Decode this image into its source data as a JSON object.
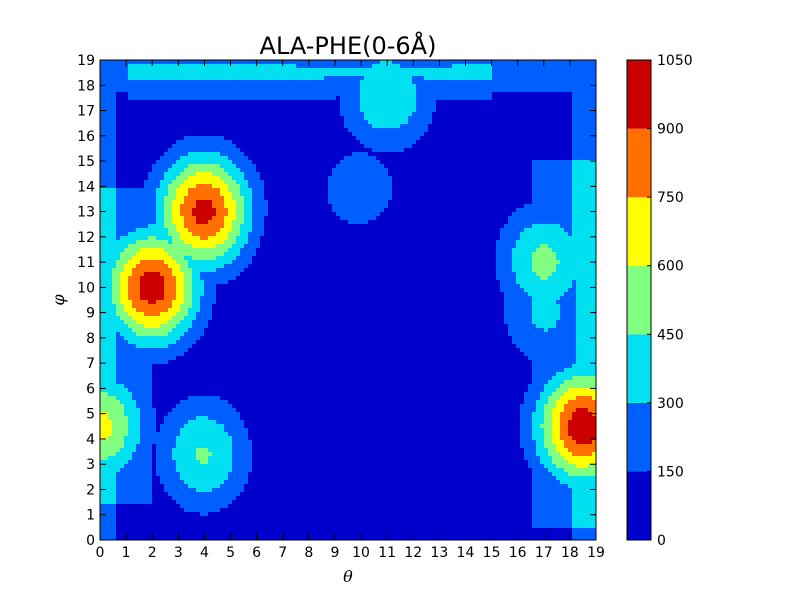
{
  "chart_data": {
    "type": "heatmap",
    "title": "ALA-PHE(0-6Å)",
    "xlabel": "θ",
    "ylabel": "φ",
    "xlim": [
      0,
      19
    ],
    "ylim": [
      0,
      19
    ],
    "x_ticks": [
      "0",
      "1",
      "2",
      "3",
      "4",
      "5",
      "6",
      "7",
      "8",
      "9",
      "10",
      "11",
      "12",
      "13",
      "14",
      "15",
      "16",
      "17",
      "18",
      "19"
    ],
    "y_ticks": [
      "0",
      "1",
      "2",
      "3",
      "4",
      "5",
      "6",
      "7",
      "8",
      "9",
      "10",
      "11",
      "12",
      "13",
      "14",
      "15",
      "16",
      "17",
      "18",
      "19"
    ],
    "colorbar": {
      "levels": [
        0,
        150,
        300,
        450,
        600,
        750,
        900,
        1050
      ],
      "tick_labels": [
        "0",
        "150",
        "300",
        "450",
        "600",
        "750",
        "900",
        "1050"
      ],
      "colors": [
        "#0000cd",
        "#0060ff",
        "#00e0f0",
        "#80ff80",
        "#ffff00",
        "#ff7000",
        "#cd0000"
      ]
    },
    "hotspots": [
      {
        "theta": 2.0,
        "phi": 10.0,
        "peak": 980
      },
      {
        "theta": 4.0,
        "phi": 13.0,
        "peak": 960
      },
      {
        "theta": 18.5,
        "phi": 4.5,
        "peak": 1000
      },
      {
        "theta": 0.0,
        "phi": 4.5,
        "peak": 640
      },
      {
        "theta": 11.0,
        "phi": 17.5,
        "peak": 470
      },
      {
        "theta": 17.0,
        "phi": 11.0,
        "peak": 500
      },
      {
        "theta": 4.0,
        "phi": 3.4,
        "peak": 470
      },
      {
        "theta": 17.0,
        "phi": 9.0,
        "peak": 340
      },
      {
        "theta": 10.0,
        "phi": 13.6,
        "peak": 330
      }
    ]
  }
}
